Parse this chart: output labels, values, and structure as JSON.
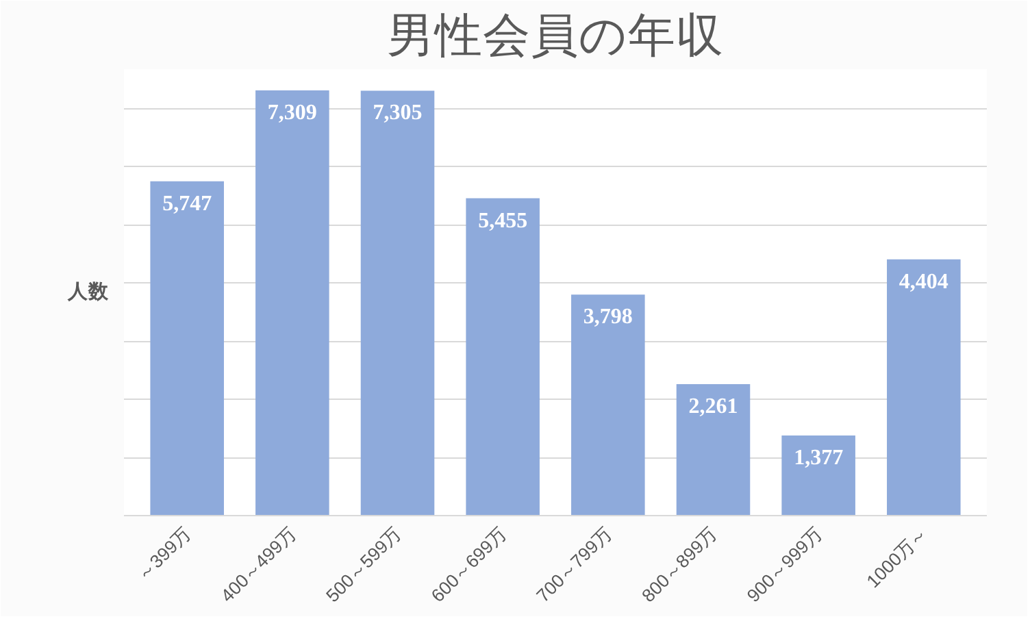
{
  "chart_data": {
    "type": "bar",
    "title": "男性会員の年収",
    "ylabel": "人数",
    "categories": [
      "～399万",
      "400～499万",
      "500～599万",
      "600～699万",
      "700～799万",
      "800～899万",
      "900～999万",
      "1000万～"
    ],
    "values": [
      5747,
      7309,
      7305,
      5455,
      3798,
      2261,
      1377,
      4404
    ],
    "value_labels": [
      "5,747",
      "7,309",
      "7,305",
      "5,455",
      "3,798",
      "2,261",
      "1,377",
      "4,404"
    ],
    "color": "#8eaadb",
    "grid": "y",
    "tick_labels": "x"
  }
}
